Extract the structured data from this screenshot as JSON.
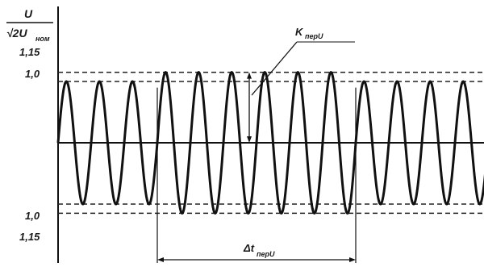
{
  "chart_data": {
    "type": "line",
    "ylabel_top": "U",
    "ylabel_bottom_root": "√2U",
    "ylabel_bottom_sub": "ном",
    "ytick_labels": [
      "1,15",
      "1,0",
      "1,0",
      "1,15"
    ],
    "ytick_values": [
      1.15,
      1.0,
      -1.0,
      -1.15
    ],
    "annotation_k": {
      "main": "K",
      "sub": "перU"
    },
    "annotation_dt": {
      "main": "Δt",
      "sub": "перU"
    },
    "ylim": [
      -1.35,
      1.35
    ],
    "xlim": [
      0,
      1
    ],
    "grid_dashed_levels": [
      1.15,
      1.0,
      -1.0,
      -1.15
    ],
    "segments": [
      {
        "amplitude": 1.0,
        "cycles": 3.0
      },
      {
        "amplitude": 1.15,
        "cycles": 6.0
      },
      {
        "amplitude": 1.0,
        "cycles": 4.0
      }
    ]
  }
}
